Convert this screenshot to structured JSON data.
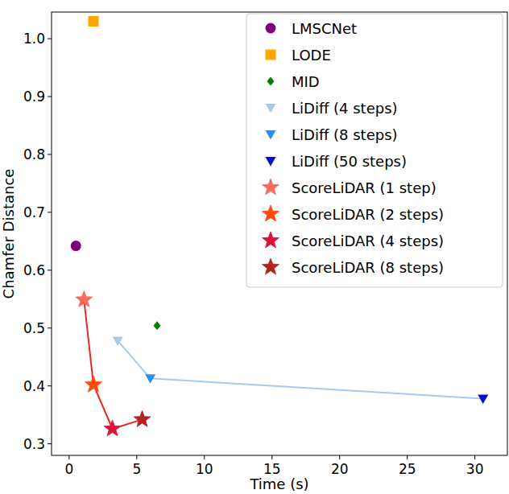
{
  "chart_data": {
    "type": "scatter",
    "x_label": "Time (s)",
    "y_label": "Chamfer Distance",
    "xlim": [
      -1.3,
      32.4
    ],
    "ylim": [
      0.28,
      1.046
    ],
    "xticks": [
      0,
      5,
      10,
      15,
      20,
      25,
      30
    ],
    "yticks": [
      0.3,
      0.4,
      0.5,
      0.6,
      0.7,
      0.8,
      0.9,
      {
        "value": 1,
        "label": "1.0"
      }
    ],
    "grid": false,
    "legend": "upper right",
    "series": [
      {
        "name": "LiDiff",
        "type": "line",
        "color": "#a9c9e8",
        "x": [
          3.6,
          6.0,
          30.6
        ],
        "values": [
          0.478,
          0.413,
          0.378
        ]
      },
      {
        "name": "ScoreLiDAR",
        "type": "line",
        "color": "#e8281e",
        "x": [
          1.1,
          1.8,
          3.2,
          5.4
        ],
        "values": [
          0.549,
          0.402,
          0.326,
          0.342
        ]
      },
      {
        "name": "LMSCNet",
        "color": "#800080",
        "marker": "circle",
        "x": [
          0.5
        ],
        "values": [
          0.642
        ]
      },
      {
        "name": "LODE",
        "color": "#ffa500",
        "marker": "square",
        "x": [
          1.8
        ],
        "values": [
          1.03
        ]
      },
      {
        "name": "MID",
        "color": "#008000",
        "marker": "diamond",
        "x": [
          6.5
        ],
        "values": [
          0.504
        ]
      },
      {
        "name": "LiDiff (4 steps)",
        "color": "#a9c9e8",
        "marker": "triangle-down",
        "x": [
          3.6
        ],
        "values": [
          0.478
        ]
      },
      {
        "name": "LiDiff (8 steps)",
        "color": "#2f8ff0",
        "marker": "triangle-down",
        "x": [
          6.0
        ],
        "values": [
          0.413
        ]
      },
      {
        "name": "LiDiff (50 steps)",
        "color": "#0a0acd",
        "marker": "triangle-down",
        "x": [
          30.6
        ],
        "values": [
          0.378
        ]
      },
      {
        "name": "ScoreLiDAR (1 step)",
        "color": "#f86a5a",
        "marker": "star",
        "x": [
          1.1
        ],
        "values": [
          0.549
        ]
      },
      {
        "name": "ScoreLiDAR (2 steps)",
        "color": "#ff4a0a",
        "marker": "star",
        "x": [
          1.8
        ],
        "values": [
          0.402
        ]
      },
      {
        "name": "ScoreLiDAR (4 steps)",
        "color": "#dc143c",
        "marker": "star",
        "x": [
          3.2
        ],
        "values": [
          0.326
        ]
      },
      {
        "name": "ScoreLiDAR (8 steps)",
        "color": "#b22222",
        "marker": "star",
        "x": [
          5.4
        ],
        "values": [
          0.342
        ]
      }
    ]
  }
}
